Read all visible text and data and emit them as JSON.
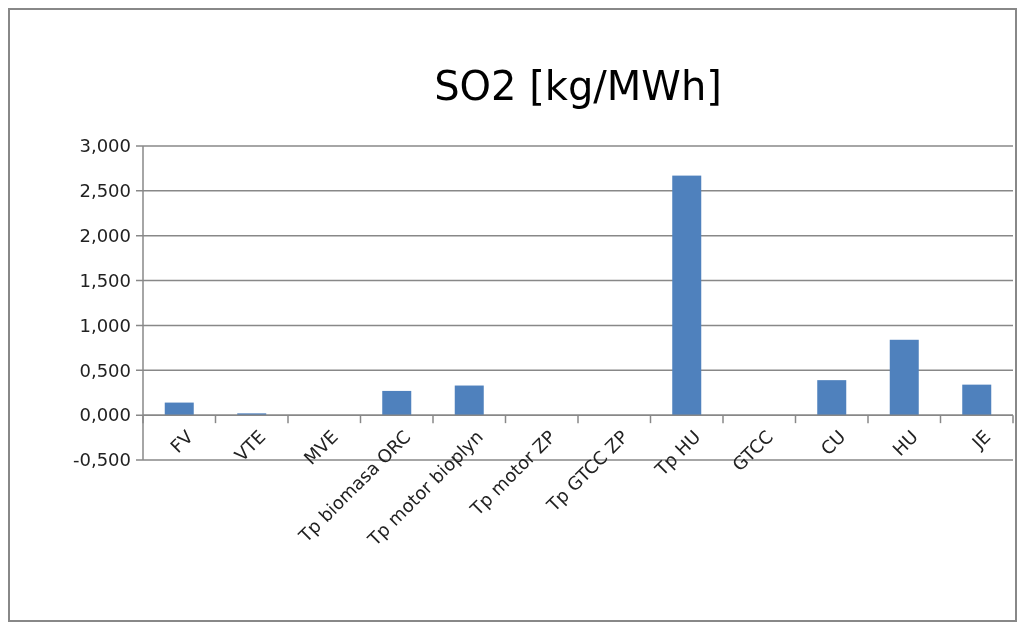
{
  "chart_data": {
    "type": "bar",
    "title": "SO2 [kg/MWh]",
    "categories": [
      "FV",
      "VTE",
      "MVE",
      "Tp biomasa ORC",
      "Tp motor bioplyn",
      "Tp motor ZP",
      "Tp GTCC ZP",
      "Tp HU",
      "GTCC",
      "CU",
      "HU",
      "JE"
    ],
    "values": [
      0.14,
      0.02,
      0,
      0.27,
      0.33,
      0,
      0,
      2.67,
      0,
      0.39,
      0.84,
      0.34
    ],
    "color": "#4f81bd",
    "ylim": [
      -0.5,
      3
    ],
    "yticks": [
      {
        "value": -0.5,
        "label": "-0,500"
      },
      {
        "value": 0,
        "label": "0,000"
      },
      {
        "value": 0.5,
        "label": "0,500"
      },
      {
        "value": 1,
        "label": "1,000"
      },
      {
        "value": 1.5,
        "label": "1,500"
      },
      {
        "value": 2,
        "label": "2,000"
      },
      {
        "value": 2.5,
        "label": "2,500"
      },
      {
        "value": 3,
        "label": "3,000"
      }
    ],
    "grid": "y"
  }
}
